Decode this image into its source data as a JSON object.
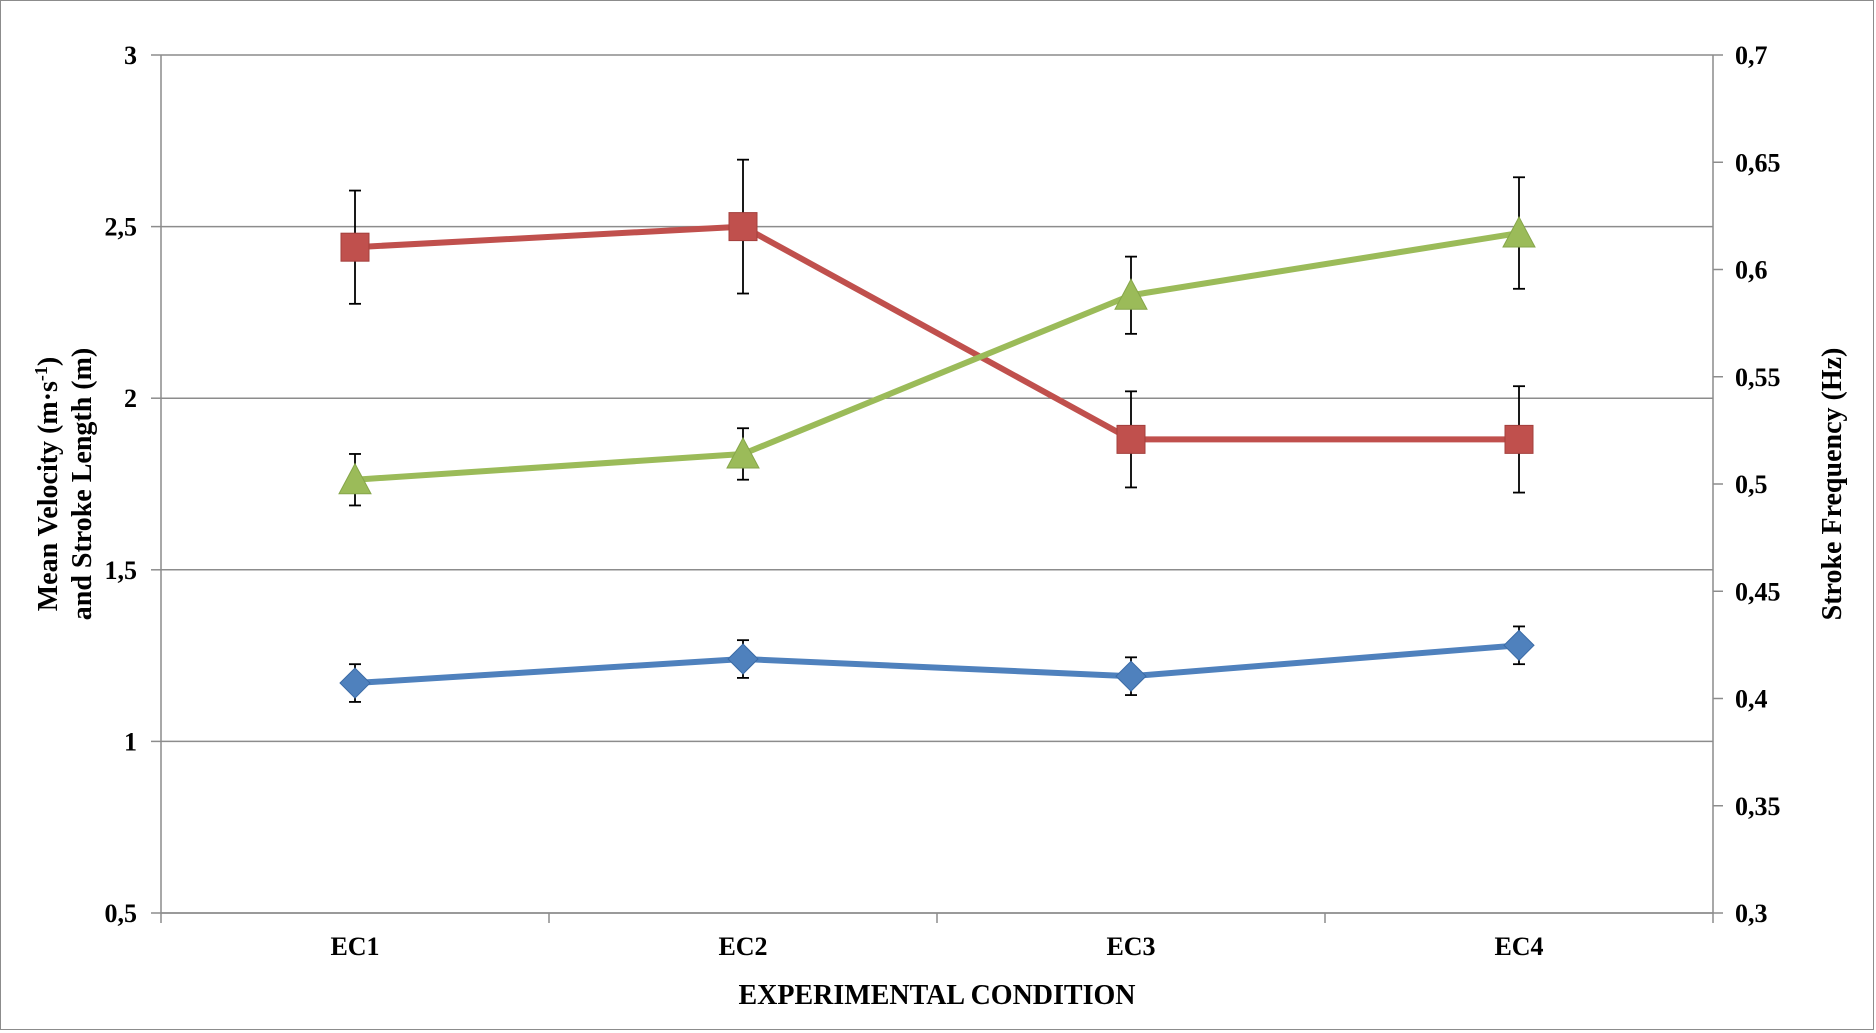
{
  "chart_data": {
    "type": "line",
    "categories": [
      "EC1",
      "EC2",
      "EC3",
      "EC4"
    ],
    "xlabel": "EXPERIMENTAL CONDITION",
    "ylabel_left": [
      "Mean Velocity (m·s",
      "-1",
      ")",
      "and Stroke Length (m)"
    ],
    "ylabel_right": "Stroke Frequency (Hz)",
    "ylim_left": [
      0.5,
      3
    ],
    "ylim_right": [
      0.3,
      0.7
    ],
    "yticks_left": [
      "0,5",
      "1",
      "1,5",
      "2",
      "2,5",
      "3"
    ],
    "yticks_right": [
      "0,3",
      "0,35",
      "0,4",
      "0,45",
      "0,5",
      "0,55",
      "0,6",
      "0,65",
      "0,7"
    ],
    "grid": true,
    "legend": "none",
    "series": [
      {
        "axis": "left",
        "marker": "diamond",
        "color": "#4f81bd",
        "values": [
          1.17,
          1.24,
          1.19,
          1.28
        ],
        "error": [
          0.055,
          0.055,
          0.055,
          0.055
        ]
      },
      {
        "axis": "left",
        "marker": "square",
        "color": "#c0504d",
        "values": [
          2.44,
          2.5,
          1.88,
          1.88
        ],
        "error": [
          0.165,
          0.195,
          0.14,
          0.155
        ]
      },
      {
        "axis": "right",
        "marker": "triangle",
        "color": "#9bbb59",
        "values": [
          0.502,
          0.514,
          0.588,
          0.617
        ],
        "error": [
          0.012,
          0.012,
          0.018,
          0.026
        ]
      }
    ]
  }
}
